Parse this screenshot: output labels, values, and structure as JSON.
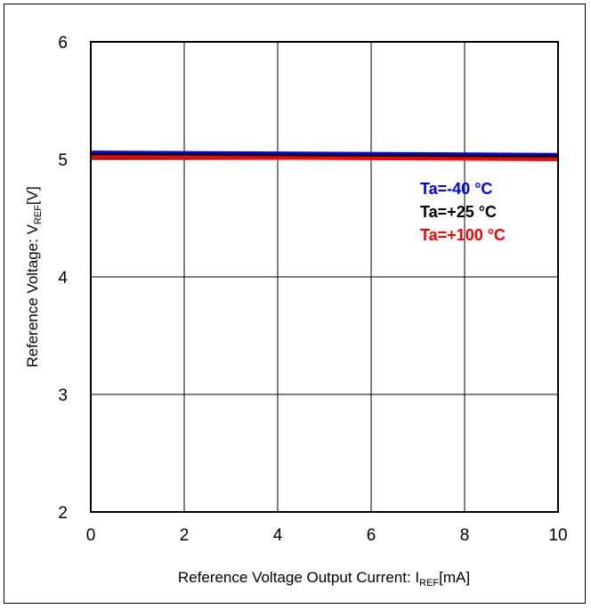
{
  "chart_data": {
    "type": "line",
    "title": "",
    "xlabel": {
      "main": "Reference Voltage Output Current: I",
      "sub": "REF",
      "unit": "[mA]"
    },
    "ylabel": {
      "main": "Reference Voltage: V",
      "sub": "REF",
      "unit": "[V]"
    },
    "xlim": [
      0,
      10
    ],
    "ylim": [
      2,
      6
    ],
    "x_ticks": [
      0,
      2,
      4,
      6,
      8,
      10
    ],
    "y_ticks": [
      2,
      3,
      4,
      5,
      6
    ],
    "grid": true,
    "legend_position": "right",
    "series": [
      {
        "name": "Ta=-40 °C",
        "color": "#0000ff",
        "x": [
          0,
          10
        ],
        "y": [
          5.06,
          5.04
        ]
      },
      {
        "name": "Ta=+25 °C",
        "color": "#000000",
        "x": [
          0,
          10
        ],
        "y": [
          5.04,
          5.02
        ]
      },
      {
        "name": "Ta=+100 °C",
        "color": "#ff0000",
        "x": [
          0,
          10
        ],
        "y": [
          5.02,
          5.0
        ]
      }
    ]
  }
}
